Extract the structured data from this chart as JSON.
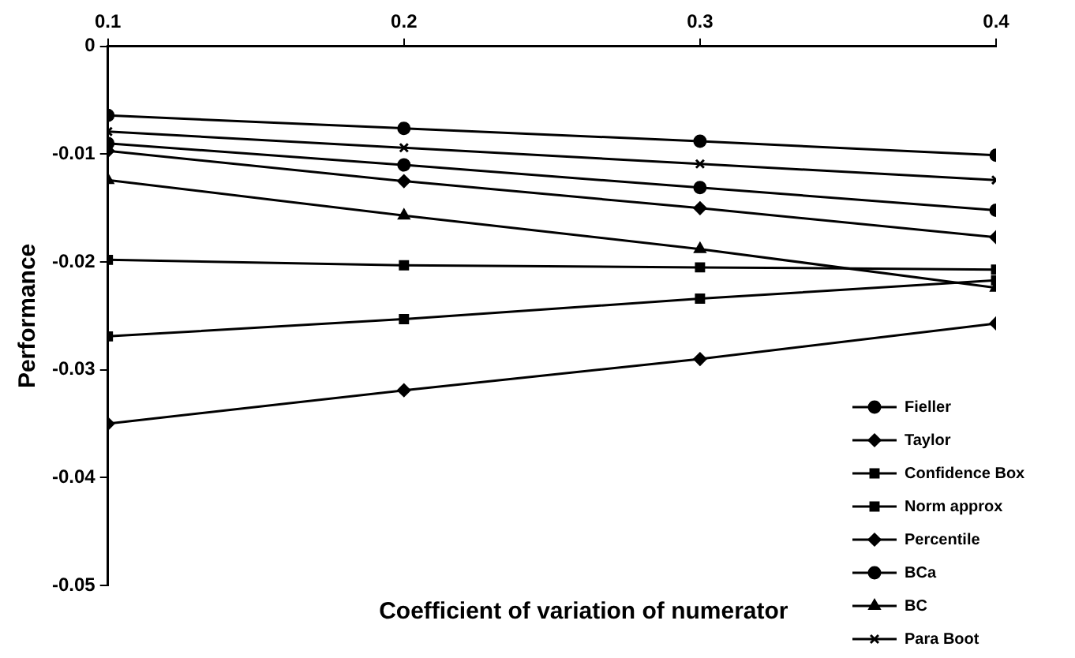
{
  "chart_data": {
    "type": "line",
    "xlabel": "Coefficient of variation of numerator",
    "ylabel": "Performance",
    "x": [
      0.1,
      0.2,
      0.3,
      0.4
    ],
    "xlim": [
      0.1,
      0.4
    ],
    "xticks": [
      0.1,
      0.2,
      0.3,
      0.4
    ],
    "ylim": [
      -0.05,
      0
    ],
    "yticks": [
      -0.05,
      -0.04,
      -0.03,
      -0.02,
      -0.01,
      0
    ],
    "grid": false,
    "legend": "bottom right",
    "line_style": "solid",
    "series": [
      {
        "name": "Fieller",
        "color": "#000000",
        "marker": "circle",
        "values": [
          -0.0064,
          -0.0076,
          -0.0088,
          -0.0101
        ]
      },
      {
        "name": "Taylor",
        "color": "#000000",
        "marker": "diamond",
        "values": [
          -0.035,
          -0.0319,
          -0.029,
          -0.0257
        ]
      },
      {
        "name": "Confidence Box",
        "color": "#000000",
        "marker": "square",
        "values": [
          -0.0198,
          -0.0203,
          -0.0205,
          -0.0207
        ]
      },
      {
        "name": "Norm approx",
        "color": "#000000",
        "marker": "square",
        "values": [
          -0.0269,
          -0.0253,
          -0.0234,
          -0.0217
        ]
      },
      {
        "name": "Percentile",
        "color": "#000000",
        "marker": "diamond",
        "values": [
          -0.0097,
          -0.0125,
          -0.015,
          -0.0177
        ]
      },
      {
        "name": "BCa",
        "color": "#000000",
        "marker": "circle",
        "values": [
          -0.009,
          -0.011,
          -0.0131,
          -0.0152
        ]
      },
      {
        "name": "BC",
        "color": "#000000",
        "marker": "triangle",
        "values": [
          -0.0124,
          -0.0157,
          -0.0188,
          -0.0224
        ]
      },
      {
        "name": "Para Boot",
        "color": "#000000",
        "marker": "cross",
        "values": [
          -0.0079,
          -0.0094,
          -0.0109,
          -0.0124
        ]
      }
    ]
  }
}
